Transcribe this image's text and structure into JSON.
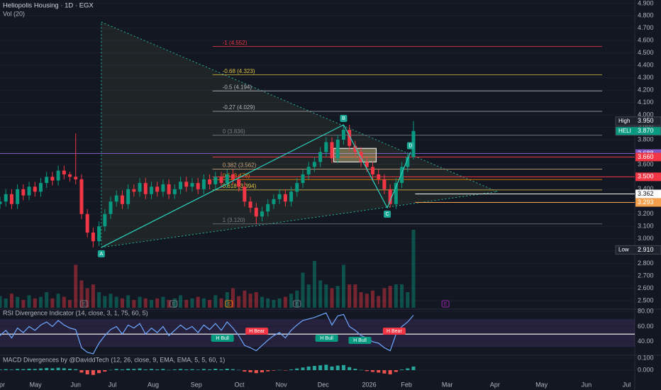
{
  "chart_data": [
    {
      "type": "candlestick",
      "title": "Heliopolis Housing · 1D · EGX",
      "subtitle": "Vol (20)",
      "xlim": [
        0,
        109
      ],
      "xticks": [
        {
          "value": 0,
          "label": "Apr"
        },
        {
          "value": 6.1,
          "label": "May"
        },
        {
          "value": 13,
          "label": "Jun"
        },
        {
          "value": 19.3,
          "label": "Jul"
        },
        {
          "value": 26.3,
          "label": "Aug"
        },
        {
          "value": 33.7,
          "label": "Sep"
        },
        {
          "value": 41.1,
          "label": "Oct"
        },
        {
          "value": 48.3,
          "label": "Nov"
        },
        {
          "value": 55.5,
          "label": "Dec"
        },
        {
          "value": 63.4,
          "label": "2026"
        },
        {
          "value": 69.8,
          "label": "Feb"
        },
        {
          "value": 76.8,
          "label": "Mar"
        },
        {
          "value": 85,
          "label": "Apr"
        },
        {
          "value": 93,
          "label": "May"
        },
        {
          "value": 100.7,
          "label": "Jun"
        },
        {
          "value": 107.6,
          "label": "Jul"
        }
      ],
      "ylim": [
        2.437,
        4.928
      ],
      "yticks": [
        {
          "value": 2.5,
          "label": "2.500"
        },
        {
          "value": 2.6,
          "label": "2.600"
        },
        {
          "value": 2.7,
          "label": "2.700"
        },
        {
          "value": 2.8,
          "label": "2.800"
        },
        {
          "value": 2.9,
          "label": "2.900"
        },
        {
          "value": 3.0,
          "label": "3.000"
        },
        {
          "value": 3.1,
          "label": "3.100"
        },
        {
          "value": 3.2,
          "label": "3.200"
        },
        {
          "value": 3.3,
          "label": "3.300"
        },
        {
          "value": 3.4,
          "label": "3.400"
        },
        {
          "value": 3.5,
          "label": "3.500"
        },
        {
          "value": 3.6,
          "label": "3.600"
        },
        {
          "value": 3.7,
          "label": "3.700"
        },
        {
          "value": 3.8,
          "label": "3.800"
        },
        {
          "value": 3.9,
          "label": "3.900"
        },
        {
          "value": 4.0,
          "label": "4.000"
        },
        {
          "value": 4.1,
          "label": "4.100"
        },
        {
          "value": 4.2,
          "label": "4.200"
        },
        {
          "value": 4.3,
          "label": "4.300"
        },
        {
          "value": 4.4,
          "label": "4.400"
        },
        {
          "value": 4.5,
          "label": "4.500"
        },
        {
          "value": 4.6,
          "label": "4.600"
        },
        {
          "value": 4.7,
          "label": "4.700"
        },
        {
          "value": 4.8,
          "label": "4.800"
        },
        {
          "value": 4.9,
          "label": "4.900"
        }
      ],
      "up_color": "#089981",
      "down_color": "#f23645",
      "open": [
        3.28,
        3.3,
        3.36,
        3.28,
        3.4,
        3.35,
        3.42,
        3.38,
        3.45,
        3.5,
        3.47,
        3.55,
        3.52,
        3.5,
        3.48,
        3.2,
        3.05,
        2.98,
        3.1,
        3.2,
        3.3,
        3.35,
        3.28,
        3.4,
        3.38,
        3.45,
        3.36,
        3.42,
        3.38,
        3.44,
        3.36,
        3.4,
        3.46,
        3.42,
        3.45,
        3.4,
        3.48,
        3.44,
        3.5,
        3.45,
        3.52,
        3.48,
        3.42,
        3.3,
        3.25,
        3.18,
        3.22,
        3.28,
        3.32,
        3.36,
        3.3,
        3.38,
        3.45,
        3.52,
        3.58,
        3.62,
        3.7,
        3.78,
        3.65,
        3.8,
        3.88,
        3.75,
        3.7,
        3.62,
        3.58,
        3.52,
        3.48,
        3.4,
        3.28,
        3.45,
        3.58,
        3.66
      ],
      "high": [
        3.34,
        3.4,
        3.4,
        3.44,
        3.44,
        3.46,
        3.46,
        3.49,
        3.54,
        3.54,
        3.59,
        3.59,
        3.54,
        3.85,
        3.52,
        3.24,
        3.09,
        3.14,
        3.24,
        3.34,
        3.39,
        3.39,
        3.44,
        3.44,
        3.49,
        3.49,
        3.46,
        3.46,
        3.48,
        3.48,
        3.44,
        3.5,
        3.5,
        3.49,
        3.49,
        3.52,
        3.52,
        3.54,
        3.54,
        3.56,
        3.56,
        3.52,
        3.46,
        3.34,
        3.29,
        3.26,
        3.32,
        3.36,
        3.4,
        3.4,
        3.42,
        3.49,
        3.56,
        3.62,
        3.66,
        3.74,
        3.82,
        3.82,
        3.84,
        3.92,
        3.92,
        3.79,
        3.74,
        3.66,
        3.62,
        3.56,
        3.52,
        3.44,
        3.49,
        3.62,
        3.7,
        3.95
      ],
      "low": [
        3.24,
        3.26,
        3.24,
        3.24,
        3.31,
        3.31,
        3.34,
        3.34,
        3.41,
        3.43,
        3.43,
        3.48,
        3.46,
        3.44,
        3.16,
        3.01,
        2.93,
        2.94,
        3.06,
        3.16,
        3.26,
        3.24,
        3.24,
        3.34,
        3.34,
        3.32,
        3.32,
        3.34,
        3.34,
        3.32,
        3.32,
        3.36,
        3.38,
        3.38,
        3.36,
        3.36,
        3.4,
        3.4,
        3.41,
        3.41,
        3.44,
        3.38,
        3.26,
        3.21,
        3.12,
        3.14,
        3.18,
        3.24,
        3.28,
        3.26,
        3.26,
        3.34,
        3.41,
        3.48,
        3.54,
        3.58,
        3.66,
        3.61,
        3.61,
        3.76,
        3.71,
        3.66,
        3.58,
        3.54,
        3.48,
        3.44,
        3.36,
        3.25,
        3.24,
        3.41,
        3.54,
        3.64
      ],
      "close": [
        3.3,
        3.36,
        3.28,
        3.4,
        3.35,
        3.42,
        3.38,
        3.45,
        3.5,
        3.47,
        3.55,
        3.52,
        3.5,
        3.48,
        3.2,
        3.05,
        2.98,
        3.1,
        3.2,
        3.3,
        3.35,
        3.28,
        3.4,
        3.38,
        3.45,
        3.36,
        3.42,
        3.38,
        3.44,
        3.36,
        3.4,
        3.46,
        3.42,
        3.45,
        3.4,
        3.48,
        3.44,
        3.5,
        3.45,
        3.52,
        3.48,
        3.42,
        3.3,
        3.25,
        3.18,
        3.22,
        3.28,
        3.32,
        3.36,
        3.3,
        3.38,
        3.45,
        3.52,
        3.58,
        3.62,
        3.7,
        3.78,
        3.65,
        3.8,
        3.88,
        3.75,
        3.7,
        3.62,
        3.58,
        3.52,
        3.48,
        3.4,
        3.28,
        3.45,
        3.58,
        3.66,
        3.87
      ],
      "volume": [
        15,
        12,
        18,
        14,
        10,
        16,
        12,
        14,
        20,
        12,
        18,
        14,
        10,
        55,
        35,
        25,
        30,
        20,
        15,
        18,
        14,
        12,
        16,
        10,
        14,
        12,
        10,
        12,
        14,
        10,
        12,
        16,
        10,
        12,
        14,
        12,
        10,
        16,
        12,
        20,
        25,
        15,
        22,
        18,
        20,
        14,
        12,
        10,
        12,
        14,
        18,
        22,
        45,
        30,
        60,
        35,
        30,
        25,
        28,
        55,
        30,
        30,
        20,
        18,
        22,
        15,
        25,
        28,
        30,
        30,
        20,
        100
      ],
      "volume_ylim": [
        0,
        100
      ],
      "fib_x": [
        36.5,
        103.4
      ],
      "fib_levels": [
        {
          "label": "-1 (4.552)",
          "value": 4.552,
          "color": "#f23645"
        },
        {
          "label": "-0.68 (4.323)",
          "value": 4.323,
          "color": "#e0c341"
        },
        {
          "label": "-0.5 (4.194)",
          "value": 4.194,
          "color": "#b2b5be"
        },
        {
          "label": "-0.27 (4.029)",
          "value": 4.029,
          "color": "#b2b5be"
        },
        {
          "label": "0 (3.836)",
          "value": 3.836,
          "color": "#787b86"
        },
        {
          "label": "0.382 (3.562)",
          "value": 3.562,
          "color": "#c9a37a"
        },
        {
          "label": "0.5 (3.478)",
          "value": 3.478,
          "color": "#f57c00"
        },
        {
          "label": "0.618 (3.394)",
          "value": 3.394,
          "color": "#e0c341"
        },
        {
          "label": "1 (3.120)",
          "value": 3.12,
          "color": "#787b86"
        }
      ],
      "triangle": [
        {
          "x": 17.4,
          "y": 4.75
        },
        {
          "x": 85.4,
          "y": 3.38
        },
        {
          "x": 17.4,
          "y": 2.93
        }
      ],
      "pattern": [
        {
          "name": "A",
          "x": 17.4,
          "y": 2.93
        },
        {
          "name": "B",
          "x": 59,
          "y": 3.92
        },
        {
          "name": "C",
          "x": 66.5,
          "y": 3.25
        },
        {
          "name": "D",
          "x": 70.5,
          "y": 3.7
        }
      ],
      "box": {
        "x": [
          57.3,
          64.6
        ],
        "y": [
          3.62,
          3.73
        ]
      },
      "price_lines": [
        {
          "label": "3.688",
          "value": 3.688,
          "color": "#7e57c2",
          "x_from": 0
        },
        {
          "label": "3.660",
          "value": 3.66,
          "color": "#f23645",
          "x_from": 36.5
        },
        {
          "label": "3.500",
          "value": 3.5,
          "color": "#f23645",
          "x_from": 36.5
        },
        {
          "label": "3.362",
          "value": 3.362,
          "color": "#ffffff",
          "x_from": 71.3
        },
        {
          "label": "3.293",
          "value": 3.293,
          "color": "#f7a04b",
          "x_from": 71.3
        }
      ],
      "price_tags": [
        {
          "tag": "High",
          "label": "3.950",
          "value": 3.95,
          "color": "#1e222d"
        },
        {
          "tag": "HELI",
          "label": "3.870",
          "value": 3.87,
          "color": "#089981"
        },
        {
          "tag": "Low",
          "label": "2.910",
          "value": 2.91,
          "color": "#1e222d"
        }
      ],
      "events": [
        {
          "label": "E",
          "x": 14.4,
          "color": "#787b86"
        },
        {
          "label": "S",
          "x": 39.3,
          "color": "#f57c00"
        },
        {
          "label": "E",
          "x": 29.8,
          "color": "#787b86"
        },
        {
          "label": "E",
          "x": 51,
          "color": "#787b86"
        },
        {
          "label": "E",
          "x": 76.5,
          "color": "#9c27b0"
        }
      ]
    },
    {
      "type": "line",
      "title": "RSI Divergence Indicator (14, close, 3, 1, 75, 60, 5)",
      "xlim": [
        0,
        109
      ],
      "ylim": [
        23,
        82
      ],
      "yticks": [
        {
          "value": 80,
          "label": "80.00"
        },
        {
          "value": 60,
          "label": "60.00"
        },
        {
          "value": 40,
          "label": "40.00"
        }
      ],
      "color": "#6ea8ff",
      "band": [
        33,
        70
      ],
      "midline": 50,
      "values": [
        48,
        55,
        45,
        58,
        52,
        60,
        55,
        62,
        66,
        60,
        68,
        62,
        58,
        56,
        32,
        26,
        24,
        38,
        48,
        56,
        60,
        50,
        62,
        58,
        64,
        50,
        58,
        52,
        60,
        48,
        55,
        62,
        56,
        60,
        52,
        62,
        56,
        64,
        55,
        66,
        58,
        48,
        35,
        32,
        28,
        35,
        42,
        48,
        52,
        45,
        55,
        62,
        68,
        70,
        72,
        75,
        78,
        62,
        74,
        76,
        60,
        55,
        48,
        45,
        40,
        38,
        32,
        28,
        50,
        60,
        66,
        75
      ],
      "annotations": [
        {
          "label": "H Bull",
          "x": 38.2,
          "y": 44.5,
          "color": "#089981"
        },
        {
          "label": "H Bear",
          "x": 44.1,
          "y": 53.9,
          "color": "#f23645"
        },
        {
          "label": "H Bull",
          "x": 56.1,
          "y": 44.5,
          "color": "#089981"
        },
        {
          "label": "H Bull",
          "x": 61.8,
          "y": 41.7,
          "color": "#089981"
        },
        {
          "label": "H Bear",
          "x": 67.7,
          "y": 53.9,
          "color": "#f23645"
        }
      ]
    },
    {
      "type": "bar",
      "title": "MACD Divergences by @DaviddTech (12, 26, close, 9, EMA, EMA, 5, 5, 60, 1)",
      "xlim": [
        0,
        109
      ],
      "ylim": [
        -0.165,
        0.112
      ],
      "yticks": [
        {
          "value": 0.1,
          "label": "0.100"
        },
        {
          "value": 0,
          "label": "0.000"
        }
      ],
      "up_color": "#26a69a",
      "down_color": "#ef5350",
      "values": [
        0.005,
        0.008,
        0.004,
        0.01,
        0.008,
        0.012,
        0.01,
        0.014,
        0.018,
        0.015,
        0.02,
        0.016,
        0.012,
        0.008,
        -0.02,
        -0.035,
        -0.04,
        -0.025,
        -0.012,
        0.002,
        0.01,
        0.006,
        0.012,
        0.01,
        0.014,
        0.006,
        0.01,
        0.006,
        0.01,
        0.002,
        0.006,
        0.01,
        0.006,
        0.008,
        0.004,
        0.01,
        0.006,
        0.012,
        0.006,
        0.012,
        0.008,
        0.002,
        -0.012,
        -0.018,
        -0.025,
        -0.018,
        -0.01,
        -0.004,
        0.002,
        -0.002,
        0.006,
        0.014,
        0.022,
        0.03,
        0.035,
        0.04,
        0.045,
        0.03,
        0.038,
        0.042,
        0.025,
        0.012,
        0.002,
        -0.008,
        -0.015,
        -0.02,
        -0.028,
        -0.035,
        -0.015,
        0.005,
        0.015,
        0.03
      ]
    }
  ]
}
